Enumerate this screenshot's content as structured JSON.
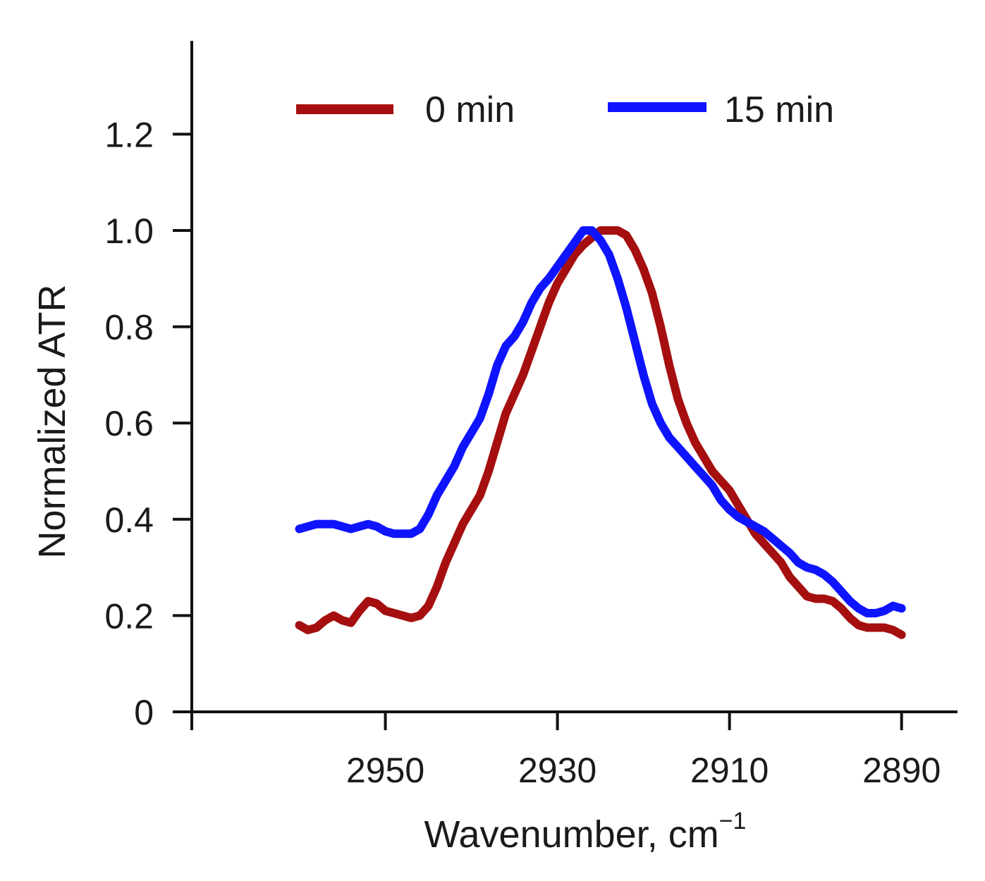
{
  "chart_data": {
    "type": "line",
    "title": "",
    "xlabel": "Wavenumber, cm",
    "xlabel_superscript": "−1",
    "ylabel": "Normalized  ATR",
    "xlim": [
      2972.5,
      2883.5
    ],
    "ylim": [
      0,
      1.4
    ],
    "x_reversed": true,
    "x_ticks": [
      2950,
      2930,
      2910,
      2890
    ],
    "x_tick_labels": [
      "2950",
      "2930",
      "2910",
      "2890"
    ],
    "y_ticks": [
      0,
      0.2,
      0.4,
      0.6,
      0.8,
      1.0,
      1.2
    ],
    "y_tick_labels": [
      "0",
      "0.2",
      "0.4",
      "0.6",
      "0.8",
      "1.0",
      "1.2"
    ],
    "grid": false,
    "legend_position": "top",
    "series": [
      {
        "name": "0 min",
        "color": "#a50f0f",
        "x": [
          2960,
          2959,
          2958,
          2957,
          2956,
          2955,
          2954,
          2953,
          2952,
          2951,
          2950,
          2949,
          2948,
          2947,
          2946,
          2945,
          2944,
          2943,
          2942,
          2941,
          2940,
          2939,
          2938,
          2937,
          2936,
          2935,
          2934,
          2933,
          2932,
          2931,
          2930,
          2929,
          2928,
          2927,
          2926,
          2925,
          2924,
          2923,
          2922,
          2921,
          2920,
          2919,
          2918,
          2917,
          2916,
          2915,
          2914,
          2913,
          2912,
          2911,
          2910,
          2909,
          2908,
          2907,
          2906,
          2905,
          2904,
          2903,
          2902,
          2901,
          2900,
          2899,
          2898,
          2897,
          2896,
          2895,
          2894,
          2893,
          2892,
          2891,
          2890
        ],
        "y": [
          0.18,
          0.17,
          0.175,
          0.19,
          0.2,
          0.19,
          0.185,
          0.21,
          0.23,
          0.225,
          0.21,
          0.205,
          0.2,
          0.195,
          0.2,
          0.22,
          0.26,
          0.31,
          0.35,
          0.39,
          0.42,
          0.45,
          0.5,
          0.56,
          0.62,
          0.66,
          0.7,
          0.75,
          0.8,
          0.85,
          0.89,
          0.92,
          0.95,
          0.97,
          0.985,
          1.0,
          1.0,
          1.0,
          0.99,
          0.96,
          0.92,
          0.87,
          0.8,
          0.72,
          0.65,
          0.6,
          0.56,
          0.53,
          0.5,
          0.48,
          0.46,
          0.43,
          0.4,
          0.37,
          0.35,
          0.33,
          0.31,
          0.28,
          0.26,
          0.24,
          0.235,
          0.235,
          0.23,
          0.215,
          0.195,
          0.18,
          0.175,
          0.175,
          0.175,
          0.17,
          0.16
        ]
      },
      {
        "name": "15 min",
        "color": "#0f14ff",
        "x": [
          2960,
          2959,
          2958,
          2957,
          2956,
          2955,
          2954,
          2953,
          2952,
          2951,
          2950,
          2949,
          2948,
          2947,
          2946,
          2945,
          2944,
          2943,
          2942,
          2941,
          2940,
          2939,
          2938,
          2937,
          2936,
          2935,
          2934,
          2933,
          2932,
          2931,
          2930,
          2929,
          2928,
          2927,
          2926,
          2925,
          2924,
          2923,
          2922,
          2921,
          2920,
          2919,
          2918,
          2917,
          2916,
          2915,
          2914,
          2913,
          2912,
          2911,
          2910,
          2909,
          2908,
          2907,
          2906,
          2905,
          2904,
          2903,
          2902,
          2901,
          2900,
          2899,
          2898,
          2897,
          2896,
          2895,
          2894,
          2893,
          2892,
          2891,
          2890
        ],
        "y": [
          0.38,
          0.385,
          0.39,
          0.39,
          0.39,
          0.385,
          0.38,
          0.385,
          0.39,
          0.385,
          0.375,
          0.37,
          0.37,
          0.37,
          0.38,
          0.41,
          0.45,
          0.48,
          0.51,
          0.55,
          0.58,
          0.61,
          0.66,
          0.72,
          0.76,
          0.78,
          0.81,
          0.85,
          0.88,
          0.9,
          0.925,
          0.95,
          0.975,
          1.0,
          1.0,
          0.98,
          0.95,
          0.9,
          0.84,
          0.77,
          0.7,
          0.64,
          0.6,
          0.57,
          0.55,
          0.53,
          0.51,
          0.49,
          0.47,
          0.44,
          0.42,
          0.405,
          0.395,
          0.385,
          0.375,
          0.36,
          0.345,
          0.33,
          0.31,
          0.3,
          0.295,
          0.285,
          0.27,
          0.25,
          0.23,
          0.215,
          0.205,
          0.205,
          0.21,
          0.22,
          0.215
        ]
      }
    ]
  }
}
